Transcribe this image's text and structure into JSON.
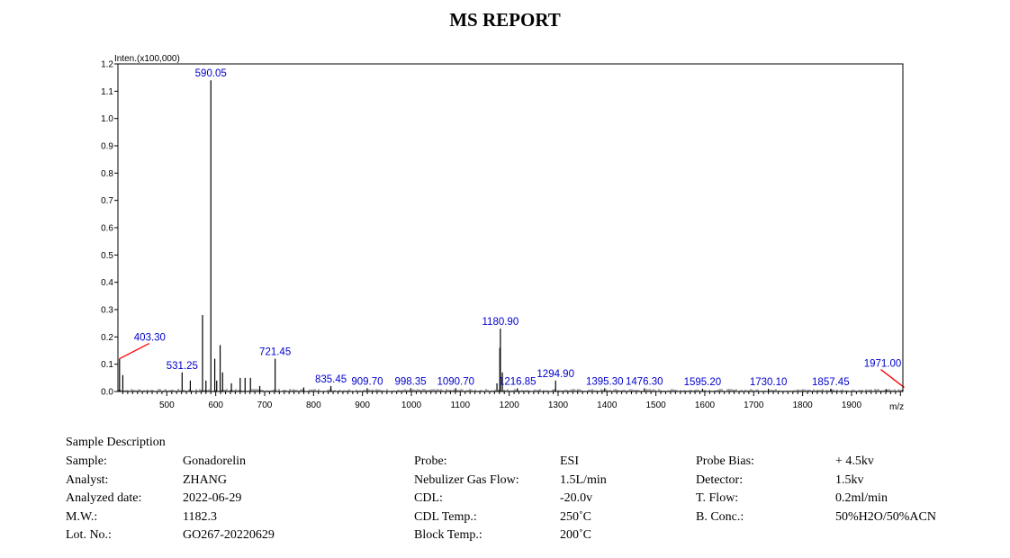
{
  "report": {
    "title": "MS REPORT"
  },
  "chart_data": {
    "type": "line",
    "ylabel": "Inten.(x100,000)",
    "xlabel": "m/z",
    "xlim": [
      400,
      2005
    ],
    "ylim": [
      0,
      1.2
    ],
    "x_ticks": [
      500,
      600,
      700,
      800,
      900,
      1000,
      1100,
      1200,
      1300,
      1400,
      1500,
      1600,
      1700,
      1800,
      1900
    ],
    "y_ticks": [
      0.0,
      0.1,
      0.2,
      0.3,
      0.4,
      0.5,
      0.6,
      0.7,
      0.8,
      0.9,
      1.0,
      1.1,
      1.2
    ],
    "y_tick_labels": [
      "0.0",
      "0.1",
      "0.2",
      "0.3",
      "0.4",
      "0.5",
      "0.6",
      "0.7",
      "0.8",
      "0.9",
      "1.0",
      "1.1",
      "1.2"
    ],
    "peaks": [
      {
        "mz": 403.3,
        "intensity": 0.12
      },
      {
        "mz": 410.0,
        "intensity": 0.06
      },
      {
        "mz": 531.25,
        "intensity": 0.07
      },
      {
        "mz": 548.0,
        "intensity": 0.04
      },
      {
        "mz": 573.0,
        "intensity": 0.28
      },
      {
        "mz": 580.0,
        "intensity": 0.04
      },
      {
        "mz": 590.05,
        "intensity": 1.14
      },
      {
        "mz": 598.0,
        "intensity": 0.12
      },
      {
        "mz": 602.0,
        "intensity": 0.04
      },
      {
        "mz": 609.0,
        "intensity": 0.17
      },
      {
        "mz": 614.0,
        "intensity": 0.07
      },
      {
        "mz": 632.0,
        "intensity": 0.03
      },
      {
        "mz": 650.0,
        "intensity": 0.05
      },
      {
        "mz": 660.0,
        "intensity": 0.05
      },
      {
        "mz": 671.0,
        "intensity": 0.05
      },
      {
        "mz": 690.0,
        "intensity": 0.02
      },
      {
        "mz": 721.45,
        "intensity": 0.12
      },
      {
        "mz": 780.0,
        "intensity": 0.015
      },
      {
        "mz": 835.45,
        "intensity": 0.02
      },
      {
        "mz": 909.7,
        "intensity": 0.012
      },
      {
        "mz": 998.35,
        "intensity": 0.012
      },
      {
        "mz": 1090.7,
        "intensity": 0.012
      },
      {
        "mz": 1175.0,
        "intensity": 0.03
      },
      {
        "mz": 1180.9,
        "intensity": 0.16
      },
      {
        "mz": 1182.0,
        "intensity": 0.23
      },
      {
        "mz": 1186.0,
        "intensity": 0.07
      },
      {
        "mz": 1216.85,
        "intensity": 0.012
      },
      {
        "mz": 1294.9,
        "intensity": 0.04
      },
      {
        "mz": 1395.3,
        "intensity": 0.012
      },
      {
        "mz": 1476.3,
        "intensity": 0.012
      },
      {
        "mz": 1595.2,
        "intensity": 0.01
      },
      {
        "mz": 1730.1,
        "intensity": 0.01
      },
      {
        "mz": 1857.45,
        "intensity": 0.01
      },
      {
        "mz": 1971.0,
        "intensity": 0.008
      }
    ],
    "peak_labels": [
      {
        "mz": 403.3,
        "intensity": 0.12,
        "text": "403.30",
        "callout": true
      },
      {
        "mz": 531.25,
        "intensity": 0.07,
        "text": "531.25",
        "callout": false
      },
      {
        "mz": 590.05,
        "intensity": 1.14,
        "text": "590.05",
        "callout": false
      },
      {
        "mz": 721.45,
        "intensity": 0.12,
        "text": "721.45",
        "callout": false
      },
      {
        "mz": 835.45,
        "intensity": 0.02,
        "text": "835.45",
        "callout": false
      },
      {
        "mz": 909.7,
        "intensity": 0.012,
        "text": "909.70",
        "callout": false
      },
      {
        "mz": 998.35,
        "intensity": 0.012,
        "text": "998.35",
        "callout": false
      },
      {
        "mz": 1090.7,
        "intensity": 0.012,
        "text": "1090.70",
        "callout": false
      },
      {
        "mz": 1182.0,
        "intensity": 0.23,
        "text": "1180.90",
        "callout": false
      },
      {
        "mz": 1216.85,
        "intensity": 0.012,
        "text": "1216.85",
        "callout": false
      },
      {
        "mz": 1294.9,
        "intensity": 0.04,
        "text": "1294.90",
        "callout": false
      },
      {
        "mz": 1395.3,
        "intensity": 0.012,
        "text": "1395.30",
        "callout": false
      },
      {
        "mz": 1476.3,
        "intensity": 0.012,
        "text": "1476.30",
        "callout": false
      },
      {
        "mz": 1595.2,
        "intensity": 0.01,
        "text": "1595.20",
        "callout": false
      },
      {
        "mz": 1730.1,
        "intensity": 0.01,
        "text": "1730.10",
        "callout": false
      },
      {
        "mz": 1857.45,
        "intensity": 0.01,
        "text": "1857.45",
        "callout": false
      },
      {
        "mz": 1971.0,
        "intensity": 0.008,
        "text": "1971.00",
        "callout": true
      }
    ],
    "colors": {
      "peaks": "#000000",
      "labels": "#0000cc",
      "callouts": "#ff0000"
    }
  },
  "sample_info": {
    "section_title": "Sample Description",
    "left": [
      {
        "label": "Sample:",
        "value": "Gonadorelin"
      },
      {
        "label": "Analyst:",
        "value": "ZHANG"
      },
      {
        "label": "Analyzed date:",
        "value": "2022-06-29"
      },
      {
        "label": "M.W.:",
        "value": "1182.3"
      },
      {
        "label": "Lot. No.:",
        "value": "GO267-20220629"
      }
    ],
    "middle": [
      {
        "label": "Probe:",
        "value": "ESI"
      },
      {
        "label": "Nebulizer Gas Flow:",
        "value": "1.5L/min"
      },
      {
        "label": "CDL:",
        "value": "-20.0v"
      },
      {
        "label": "CDL Temp.:",
        "value": "250˚C"
      },
      {
        "label": "Block Temp.:",
        "value": "200˚C"
      }
    ],
    "right": [
      {
        "label": "Probe Bias:",
        "value": "+ 4.5kv"
      },
      {
        "label": "Detector:",
        "value": "1.5kv"
      },
      {
        "label": "T. Flow:",
        "value": "0.2ml/min"
      },
      {
        "label": "B. Conc.:",
        "value": "50%H2O/50%ACN"
      }
    ]
  }
}
